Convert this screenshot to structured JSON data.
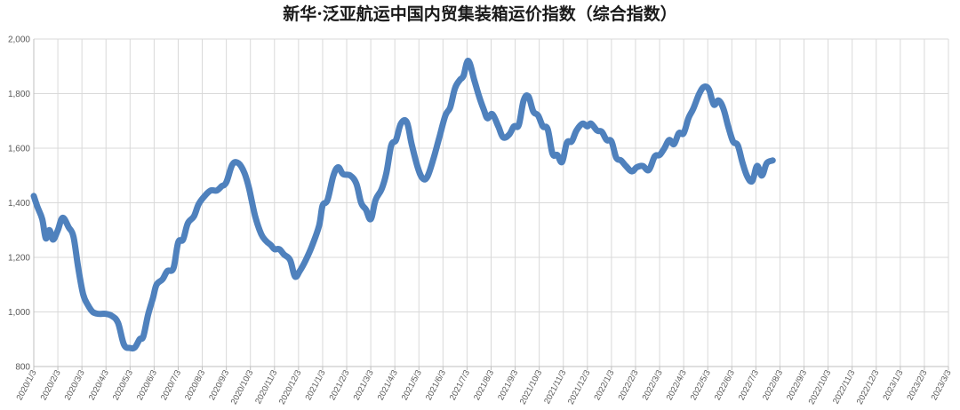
{
  "chart_data": {
    "type": "line",
    "title": "新华·泛亚航运中国内贸集装箱运价指数（综合指数）",
    "xlabel": "",
    "ylabel": "",
    "ylim": [
      800,
      2000
    ],
    "yticks": [
      800,
      1000,
      1200,
      1400,
      1600,
      1800,
      2000
    ],
    "ytick_labels": [
      "800",
      "1,000",
      "1,200",
      "1,400",
      "1,600",
      "1,800",
      "2,000"
    ],
    "grid": true,
    "legend": "none",
    "line_color": "#4f81bd",
    "x_labels": [
      "2020/1/3",
      "2020/2/3",
      "2020/3/3",
      "2020/4/3",
      "2020/5/3",
      "2020/6/3",
      "2020/7/3",
      "2020/8/3",
      "2020/9/3",
      "2020/10/3",
      "2020/11/3",
      "2020/12/3",
      "2021/1/3",
      "2021/2/3",
      "2021/3/3",
      "2021/4/3",
      "2021/5/3",
      "2021/6/3",
      "2021/7/3",
      "2021/8/3",
      "2021/9/3",
      "2021/10/3",
      "2021/11/3",
      "2021/12/3",
      "2022/1/3",
      "2022/2/3",
      "2022/3/3",
      "2022/4/3",
      "2022/5/3",
      "2022/6/3",
      "2022/7/3",
      "2022/8/3",
      "2022/9/3",
      "2022/10/3",
      "2022/11/3",
      "2022/12/3",
      "2023/1/3",
      "2023/2/3",
      "2023/3/3"
    ],
    "series": [
      {
        "values": [
          [
            0,
            1425
          ],
          [
            0.15,
            1385
          ],
          [
            0.35,
            1340
          ],
          [
            0.5,
            1270
          ],
          [
            0.65,
            1300
          ],
          [
            0.8,
            1265
          ],
          [
            1.0,
            1300
          ],
          [
            1.2,
            1345
          ],
          [
            1.45,
            1310
          ],
          [
            1.65,
            1275
          ],
          [
            1.85,
            1160
          ],
          [
            2.05,
            1065
          ],
          [
            2.25,
            1025
          ],
          [
            2.45,
            1000
          ],
          [
            2.7,
            993
          ],
          [
            3.0,
            993
          ],
          [
            3.25,
            985
          ],
          [
            3.5,
            960
          ],
          [
            3.75,
            880
          ],
          [
            4.0,
            868
          ],
          [
            4.2,
            870
          ],
          [
            4.4,
            900
          ],
          [
            4.55,
            910
          ],
          [
            4.75,
            990
          ],
          [
            4.95,
            1050
          ],
          [
            5.1,
            1100
          ],
          [
            5.35,
            1120
          ],
          [
            5.55,
            1150
          ],
          [
            5.8,
            1160
          ],
          [
            6.0,
            1255
          ],
          [
            6.2,
            1265
          ],
          [
            6.4,
            1325
          ],
          [
            6.65,
            1350
          ],
          [
            6.85,
            1395
          ],
          [
            7.1,
            1425
          ],
          [
            7.35,
            1445
          ],
          [
            7.6,
            1445
          ],
          [
            7.8,
            1460
          ],
          [
            8.0,
            1475
          ],
          [
            8.25,
            1540
          ],
          [
            8.5,
            1545
          ],
          [
            8.75,
            1510
          ],
          [
            8.95,
            1450
          ],
          [
            9.2,
            1350
          ],
          [
            9.45,
            1285
          ],
          [
            9.65,
            1260
          ],
          [
            9.85,
            1245
          ],
          [
            10.0,
            1230
          ],
          [
            10.2,
            1230
          ],
          [
            10.4,
            1210
          ],
          [
            10.65,
            1190
          ],
          [
            10.85,
            1130
          ],
          [
            11.05,
            1150
          ],
          [
            11.3,
            1190
          ],
          [
            11.55,
            1240
          ],
          [
            11.85,
            1315
          ],
          [
            12.0,
            1390
          ],
          [
            12.2,
            1410
          ],
          [
            12.45,
            1500
          ],
          [
            12.65,
            1530
          ],
          [
            12.85,
            1505
          ],
          [
            13.15,
            1500
          ],
          [
            13.4,
            1470
          ],
          [
            13.6,
            1400
          ],
          [
            13.8,
            1375
          ],
          [
            14.0,
            1340
          ],
          [
            14.2,
            1410
          ],
          [
            14.45,
            1450
          ],
          [
            14.65,
            1510
          ],
          [
            14.85,
            1610
          ],
          [
            15.05,
            1630
          ],
          [
            15.25,
            1690
          ],
          [
            15.5,
            1695
          ],
          [
            15.7,
            1615
          ],
          [
            15.95,
            1530
          ],
          [
            16.15,
            1490
          ],
          [
            16.35,
            1495
          ],
          [
            16.6,
            1560
          ],
          [
            16.85,
            1640
          ],
          [
            17.1,
            1720
          ],
          [
            17.3,
            1750
          ],
          [
            17.5,
            1820
          ],
          [
            17.7,
            1850
          ],
          [
            17.85,
            1865
          ],
          [
            18.05,
            1920
          ],
          [
            18.3,
            1850
          ],
          [
            18.5,
            1790
          ],
          [
            18.7,
            1740
          ],
          [
            18.85,
            1710
          ],
          [
            19.05,
            1725
          ],
          [
            19.3,
            1680
          ],
          [
            19.5,
            1640
          ],
          [
            19.75,
            1650
          ],
          [
            19.95,
            1680
          ],
          [
            20.15,
            1685
          ],
          [
            20.35,
            1775
          ],
          [
            20.55,
            1790
          ],
          [
            20.75,
            1735
          ],
          [
            20.95,
            1720
          ],
          [
            21.15,
            1680
          ],
          [
            21.35,
            1670
          ],
          [
            21.55,
            1580
          ],
          [
            21.75,
            1575
          ],
          [
            21.95,
            1550
          ],
          [
            22.15,
            1620
          ],
          [
            22.35,
            1625
          ],
          [
            22.55,
            1665
          ],
          [
            22.8,
            1690
          ],
          [
            23.0,
            1680
          ],
          [
            23.15,
            1690
          ],
          [
            23.4,
            1665
          ],
          [
            23.6,
            1660
          ],
          [
            23.8,
            1630
          ],
          [
            24.0,
            1625
          ],
          [
            24.2,
            1565
          ],
          [
            24.4,
            1555
          ],
          [
            24.6,
            1535
          ],
          [
            24.85,
            1515
          ],
          [
            25.05,
            1530
          ],
          [
            25.3,
            1535
          ],
          [
            25.55,
            1520
          ],
          [
            25.8,
            1570
          ],
          [
            26.0,
            1575
          ],
          [
            26.2,
            1600
          ],
          [
            26.4,
            1630
          ],
          [
            26.6,
            1615
          ],
          [
            26.8,
            1655
          ],
          [
            27.0,
            1655
          ],
          [
            27.2,
            1710
          ],
          [
            27.4,
            1745
          ],
          [
            27.65,
            1800
          ],
          [
            27.85,
            1825
          ],
          [
            28.05,
            1815
          ],
          [
            28.25,
            1760
          ],
          [
            28.45,
            1775
          ],
          [
            28.65,
            1745
          ],
          [
            28.85,
            1680
          ],
          [
            29.05,
            1625
          ],
          [
            29.25,
            1610
          ],
          [
            29.45,
            1545
          ],
          [
            29.65,
            1495
          ],
          [
            29.85,
            1480
          ],
          [
            30.05,
            1535
          ],
          [
            30.25,
            1500
          ],
          [
            30.45,
            1545
          ],
          [
            30.7,
            1555
          ]
        ]
      }
    ]
  }
}
